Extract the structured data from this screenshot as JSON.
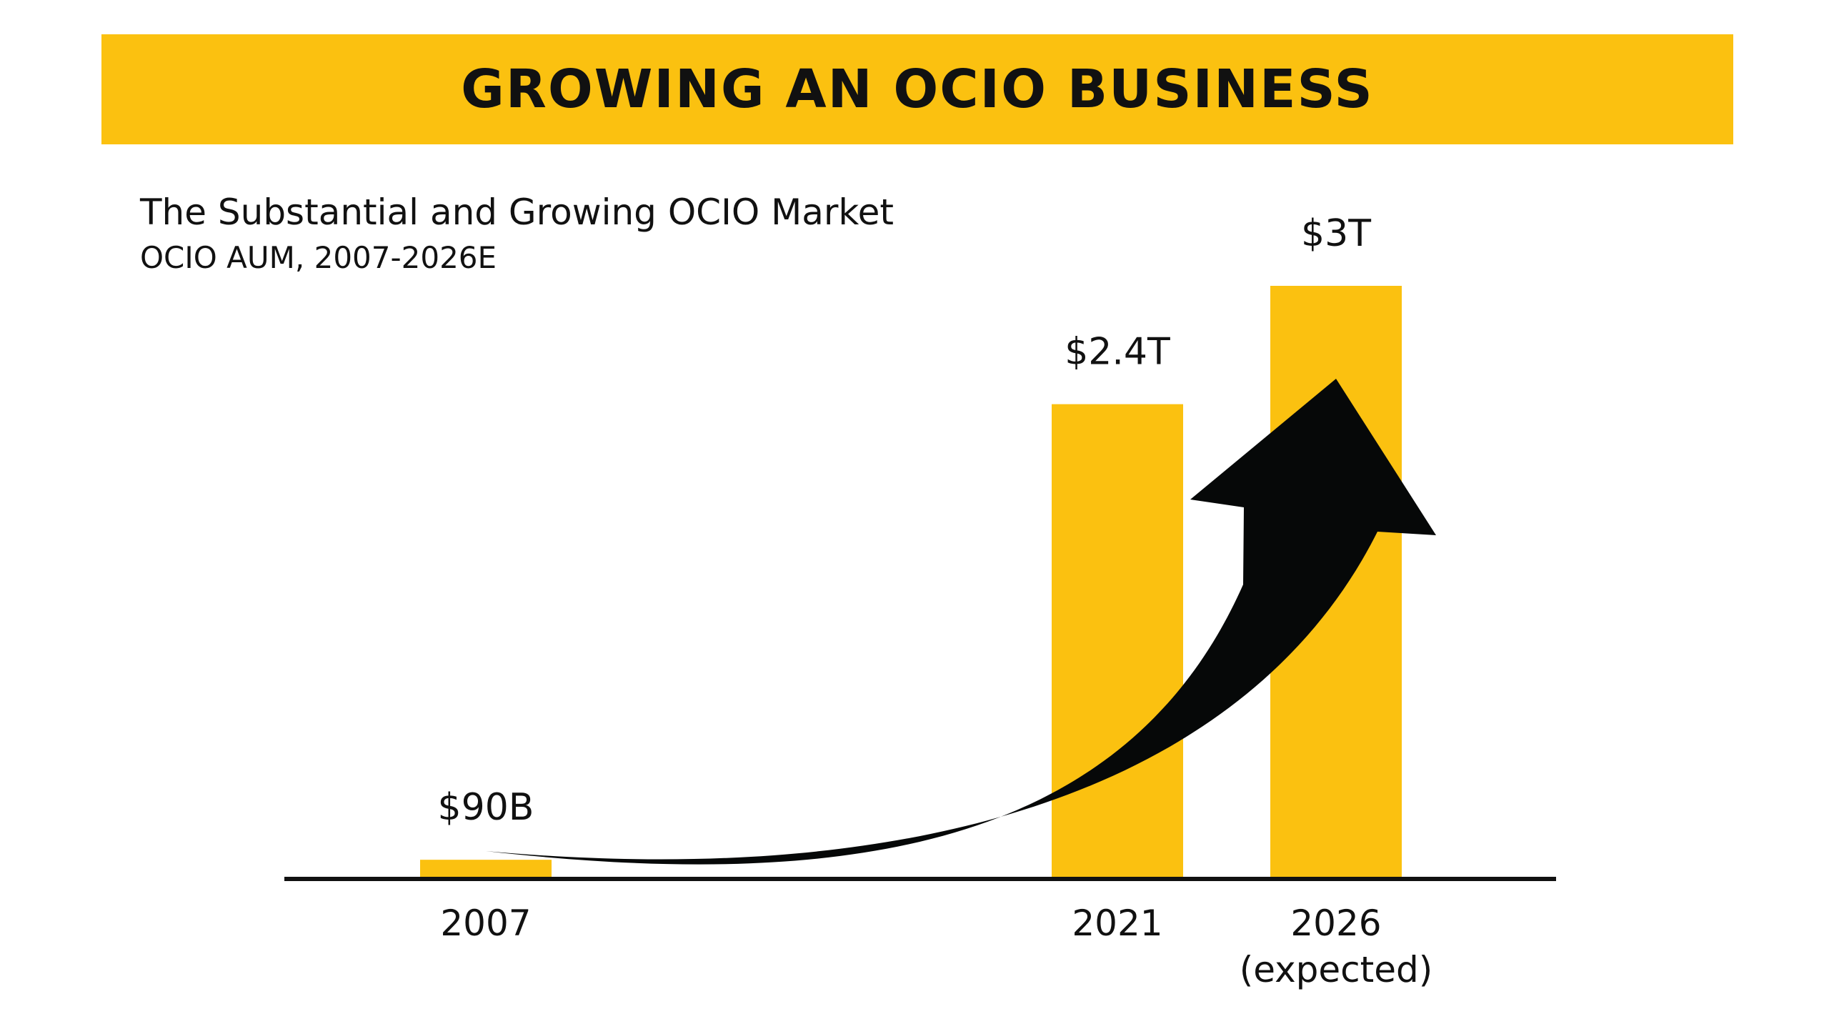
{
  "header": {
    "title": "GROWING AN OCIO BUSINESS"
  },
  "colors": {
    "banner": "#fbc110",
    "bar": "#fbc110",
    "arrow": "#060808",
    "axis": "#111111"
  },
  "chart_data": {
    "type": "bar",
    "title": "The Substantial and Growing OCIO Market",
    "subtitle": "OCIO AUM, 2007-2026E",
    "xlabel": "",
    "ylabel": "",
    "grid": false,
    "legend": "none",
    "unit": "trillion USD",
    "ylim": [
      0,
      3
    ],
    "categories": [
      "2007",
      "2021",
      "2026"
    ],
    "category_sublabels": [
      "",
      "",
      "(expected)"
    ],
    "values": [
      0.09,
      2.4,
      3
    ],
    "data_labels": [
      "$90B",
      "$2.4T",
      "$3T"
    ],
    "annotations": [
      "arrow-up-trend"
    ]
  }
}
